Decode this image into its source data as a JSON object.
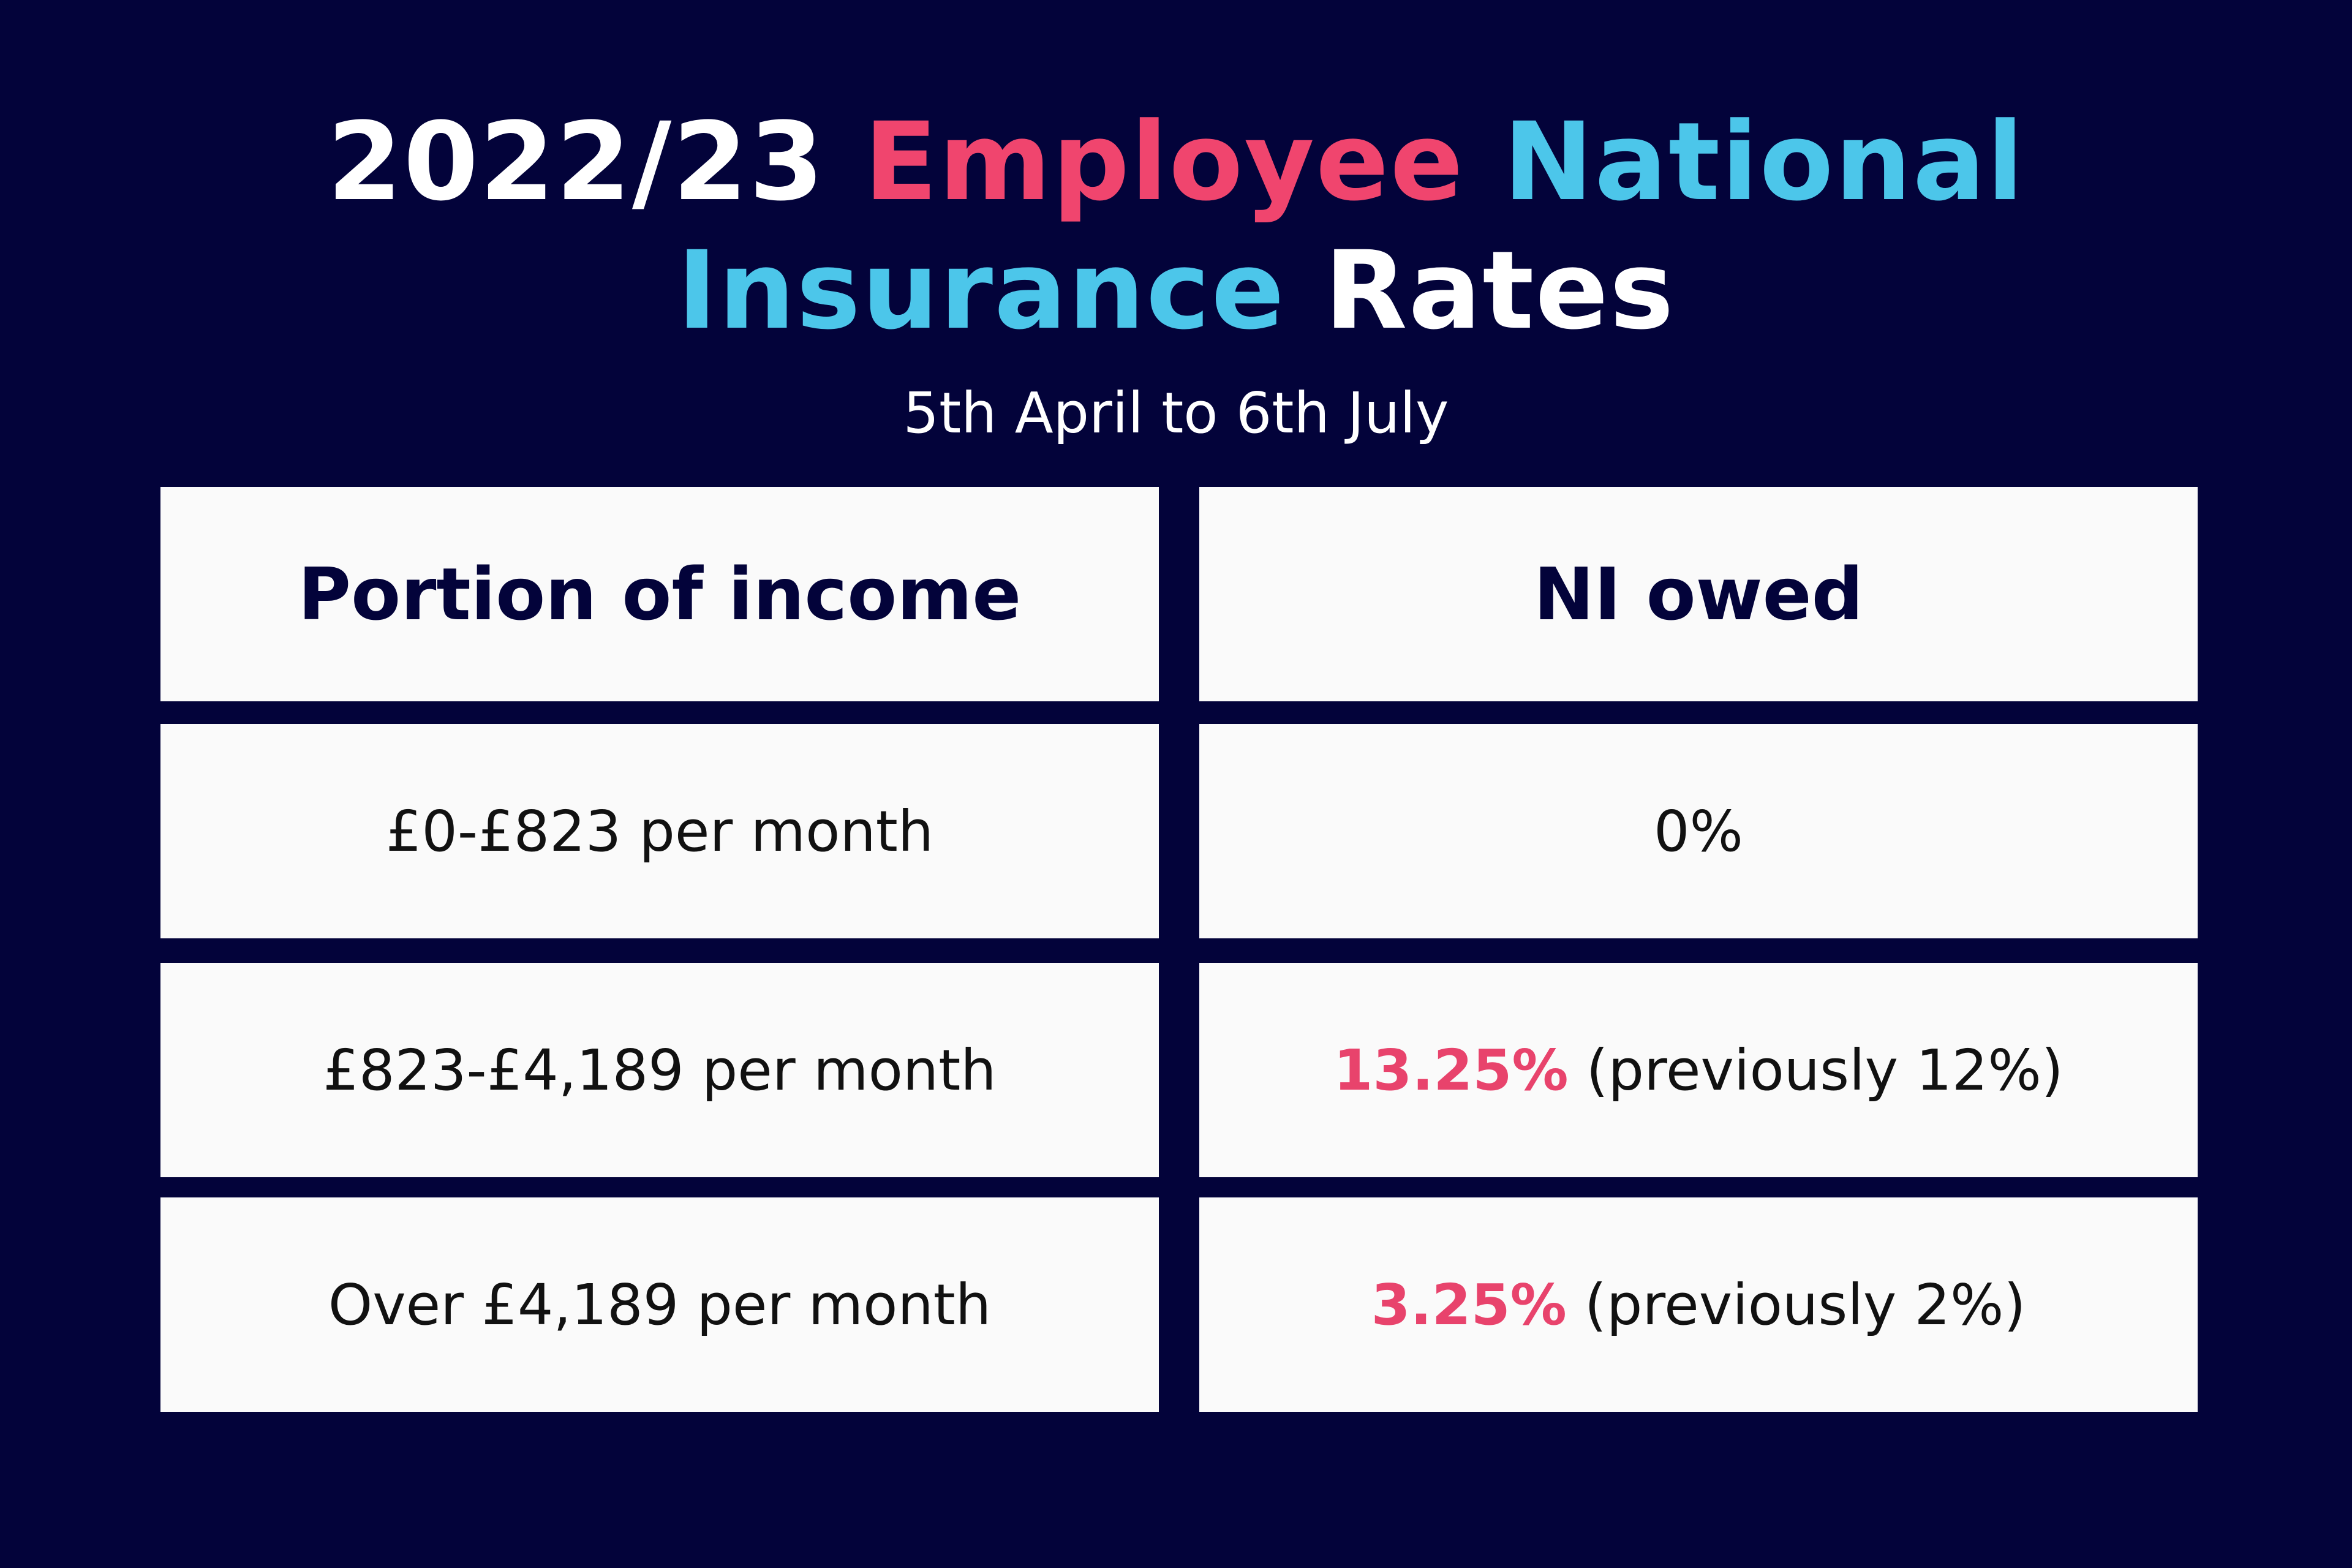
{
  "title": {
    "line1": {
      "part1": "2022/23",
      "part2": "Employee",
      "part3": "National"
    },
    "line2": {
      "part1": "Insurance",
      "part2": "Rates"
    }
  },
  "subtitle": "5th April to 6th July",
  "table": {
    "headers": [
      "Portion of income",
      "NI owed"
    ],
    "rows": [
      {
        "income": "£0-£823 per month",
        "rate": "0%",
        "note": ""
      },
      {
        "income": "£823-£4,189 per month",
        "rate": "13.25%",
        "note": "(previously 12%)"
      },
      {
        "income": "Over £4,189 per month",
        "rate": "3.25%",
        "note": "(previously 2%)"
      }
    ]
  },
  "colors": {
    "background": "#03033a",
    "pink": "#f0456e",
    "cyan": "#4cc6ea",
    "cell": "#fafafa"
  }
}
